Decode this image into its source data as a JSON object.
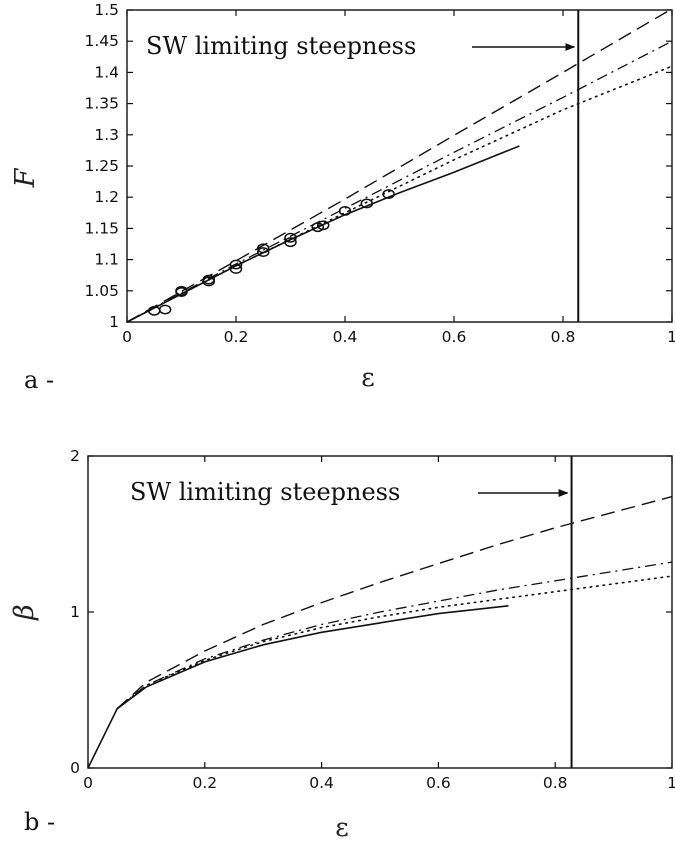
{
  "chart_data": [
    {
      "type": "line",
      "panel_label": "a -",
      "xlabel": "ε",
      "ylabel": "F",
      "xlim": [
        0,
        1
      ],
      "ylim": [
        1,
        1.5
      ],
      "xticks": [
        0,
        0.2,
        0.4,
        0.6,
        0.8,
        1
      ],
      "xtick_labels": [
        "0",
        "0.2",
        "0.4",
        "0.6",
        "0.8",
        "1"
      ],
      "yticks": [
        1,
        1.05,
        1.1,
        1.15,
        1.2,
        1.25,
        1.3,
        1.35,
        1.4,
        1.45,
        1.5
      ],
      "ytick_labels": [
        "1",
        "1.05",
        "1.1",
        "1.15",
        "1.2",
        "1.25",
        "1.3",
        "1.35",
        "1.4",
        "1.45",
        "1.5"
      ],
      "vertical_line_x": 0.828,
      "annotation": {
        "text": "SW limiting steepness",
        "arrow_to_x": 0.828
      },
      "series": [
        {
          "style": "solid",
          "x": [
            0,
            0.1,
            0.2,
            0.3,
            0.4,
            0.5,
            0.6,
            0.72
          ],
          "y": [
            1.0,
            1.045,
            1.09,
            1.132,
            1.172,
            1.207,
            1.24,
            1.282
          ]
        },
        {
          "style": "dashed",
          "x": [
            0,
            0.2,
            0.4,
            0.6,
            0.8,
            1.0
          ],
          "y": [
            1.0,
            1.098,
            1.197,
            1.299,
            1.4,
            1.502
          ]
        },
        {
          "style": "dashdot",
          "x": [
            0,
            0.2,
            0.4,
            0.6,
            0.8,
            1.0
          ],
          "y": [
            1.0,
            1.093,
            1.182,
            1.272,
            1.36,
            1.45
          ]
        },
        {
          "style": "dotted",
          "x": [
            0,
            0.2,
            0.4,
            0.6,
            0.8,
            1.0
          ],
          "y": [
            1.0,
            1.09,
            1.175,
            1.26,
            1.34,
            1.41
          ]
        },
        {
          "style": "markers",
          "marker": "circle",
          "x": [
            0.05,
            0.07,
            0.1,
            0.1,
            0.15,
            0.15,
            0.2,
            0.2,
            0.25,
            0.25,
            0.3,
            0.3,
            0.35,
            0.36,
            0.4,
            0.44,
            0.48
          ],
          "y": [
            1.018,
            1.02,
            1.048,
            1.05,
            1.065,
            1.068,
            1.085,
            1.092,
            1.112,
            1.118,
            1.128,
            1.135,
            1.152,
            1.155,
            1.178,
            1.19,
            1.205
          ]
        }
      ]
    },
    {
      "type": "line",
      "panel_label": "b -",
      "xlabel": "ε",
      "ylabel": "β",
      "xlim": [
        0,
        1
      ],
      "ylim": [
        0,
        2
      ],
      "xticks": [
        0,
        0.2,
        0.4,
        0.6,
        0.8,
        1
      ],
      "xtick_labels": [
        "0",
        "0.2",
        "0.4",
        "0.6",
        "0.8",
        "1"
      ],
      "yticks": [
        0,
        1,
        2
      ],
      "ytick_labels": [
        "0",
        "1",
        "2"
      ],
      "vertical_line_x": 0.828,
      "annotation": {
        "text": "SW limiting steepness",
        "arrow_to_x": 0.828
      },
      "series": [
        {
          "style": "solid",
          "x": [
            0,
            0.05,
            0.1,
            0.2,
            0.3,
            0.4,
            0.5,
            0.6,
            0.72
          ],
          "y": [
            0,
            0.38,
            0.52,
            0.68,
            0.79,
            0.87,
            0.93,
            0.99,
            1.04
          ]
        },
        {
          "style": "dashed",
          "x": [
            0.05,
            0.1,
            0.2,
            0.3,
            0.4,
            0.5,
            0.6,
            0.7,
            0.8,
            0.9,
            1.0
          ],
          "y": [
            0.38,
            0.55,
            0.75,
            0.92,
            1.06,
            1.19,
            1.31,
            1.43,
            1.54,
            1.64,
            1.74
          ]
        },
        {
          "style": "dashdot",
          "x": [
            0.05,
            0.1,
            0.2,
            0.3,
            0.4,
            0.5,
            0.6,
            0.7,
            0.8,
            0.9,
            1.0
          ],
          "y": [
            0.38,
            0.53,
            0.7,
            0.82,
            0.92,
            1.0,
            1.07,
            1.14,
            1.2,
            1.26,
            1.32
          ]
        },
        {
          "style": "dotted",
          "x": [
            0.05,
            0.1,
            0.2,
            0.3,
            0.4,
            0.5,
            0.6,
            0.7,
            0.8,
            0.9,
            1.0
          ],
          "y": [
            0.38,
            0.53,
            0.69,
            0.81,
            0.9,
            0.97,
            1.03,
            1.08,
            1.13,
            1.18,
            1.23
          ]
        }
      ]
    }
  ]
}
